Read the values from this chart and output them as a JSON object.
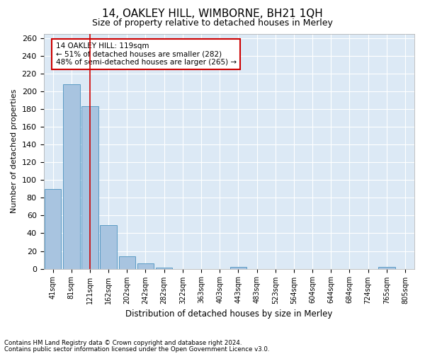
{
  "title": "14, OAKLEY HILL, WIMBORNE, BH21 1QH",
  "subtitle": "Size of property relative to detached houses in Merley",
  "xlabel": "Distribution of detached houses by size in Merley",
  "ylabel": "Number of detached properties",
  "footer1": "Contains HM Land Registry data © Crown copyright and database right 2024.",
  "footer2": "Contains public sector information licensed under the Open Government Licence v3.0.",
  "annotation_line1": "14 OAKLEY HILL: 119sqm",
  "annotation_line2": "← 51% of detached houses are smaller (282)",
  "annotation_line3": "48% of semi-detached houses are larger (265) →",
  "bar_values": [
    90,
    208,
    183,
    49,
    14,
    6,
    1,
    0,
    0,
    0,
    2,
    0,
    0,
    0,
    0,
    0,
    0,
    0,
    2,
    0
  ],
  "bar_labels": [
    "41sqm",
    "81sqm",
    "121sqm",
    "162sqm",
    "202sqm",
    "242sqm",
    "282sqm",
    "322sqm",
    "363sqm",
    "403sqm",
    "443sqm",
    "483sqm",
    "523sqm",
    "564sqm",
    "604sqm",
    "644sqm",
    "684sqm",
    "724sqm",
    "765sqm",
    "805sqm"
  ],
  "property_line_x": 2,
  "bar_color": "#a8c4e0",
  "bar_edgecolor": "#5a9bc4",
  "line_color": "#cc0000",
  "annotation_box_color": "#cc0000",
  "background_color": "#dce9f5",
  "ylim": [
    0,
    265
  ],
  "yticks": [
    0,
    20,
    40,
    60,
    80,
    100,
    120,
    140,
    160,
    180,
    200,
    220,
    240,
    260
  ]
}
